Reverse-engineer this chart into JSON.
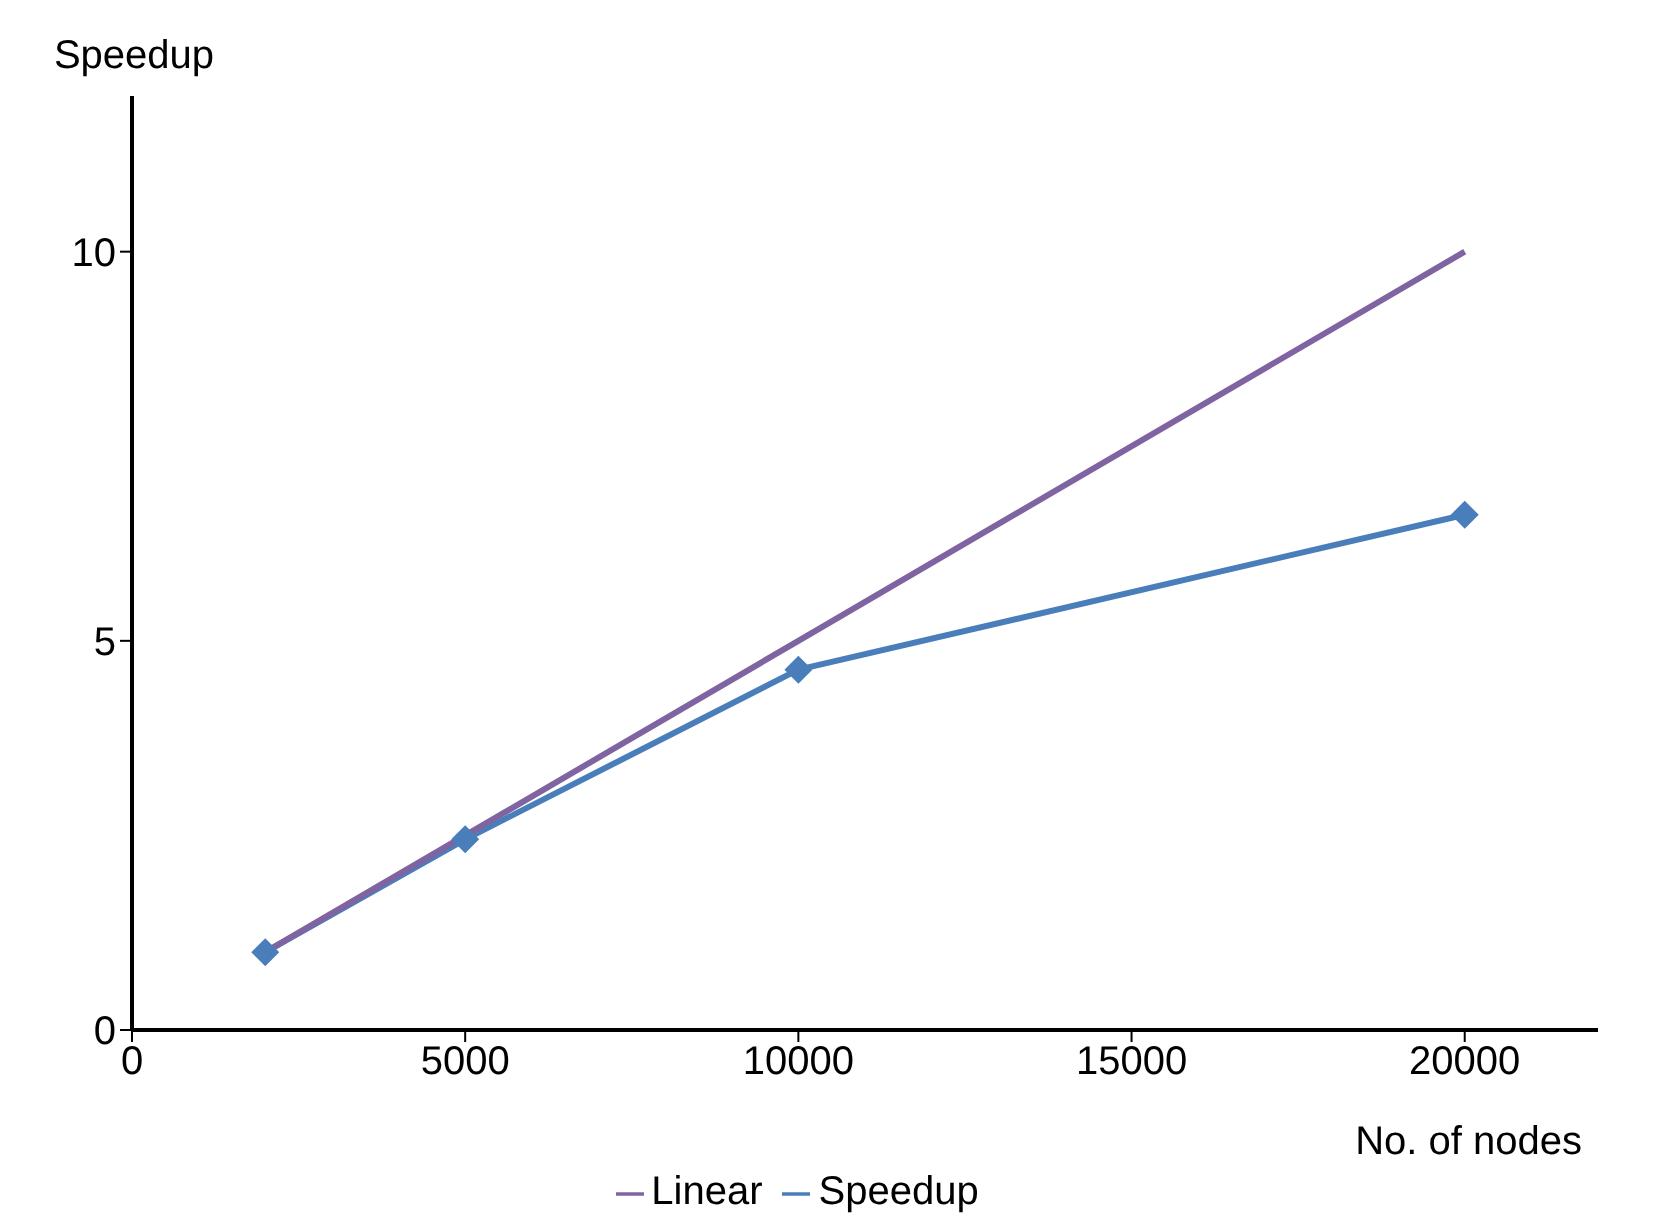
{
  "chart_data": {
    "type": "line",
    "ylabel": "Speedup",
    "xlabel": "No. of nodes",
    "x": [
      2000,
      5000,
      10000,
      20000
    ],
    "series": [
      {
        "name": "Speedup",
        "color": "#4a7ebb",
        "values": [
          1.0,
          2.45,
          4.63,
          6.62
        ],
        "marker": "diamond"
      },
      {
        "name": "Linear",
        "color": "#8064a2",
        "values": [
          1,
          2.5,
          5,
          10
        ],
        "marker": "none"
      }
    ],
    "xlim": [
      0,
      22000
    ],
    "xticks": [
      0,
      5000,
      10000,
      15000,
      20000
    ],
    "ylim": [
      0,
      12
    ],
    "yticks": [
      0,
      5,
      10
    ],
    "grid": false,
    "legend": "bottom",
    "line_style": "solid"
  }
}
